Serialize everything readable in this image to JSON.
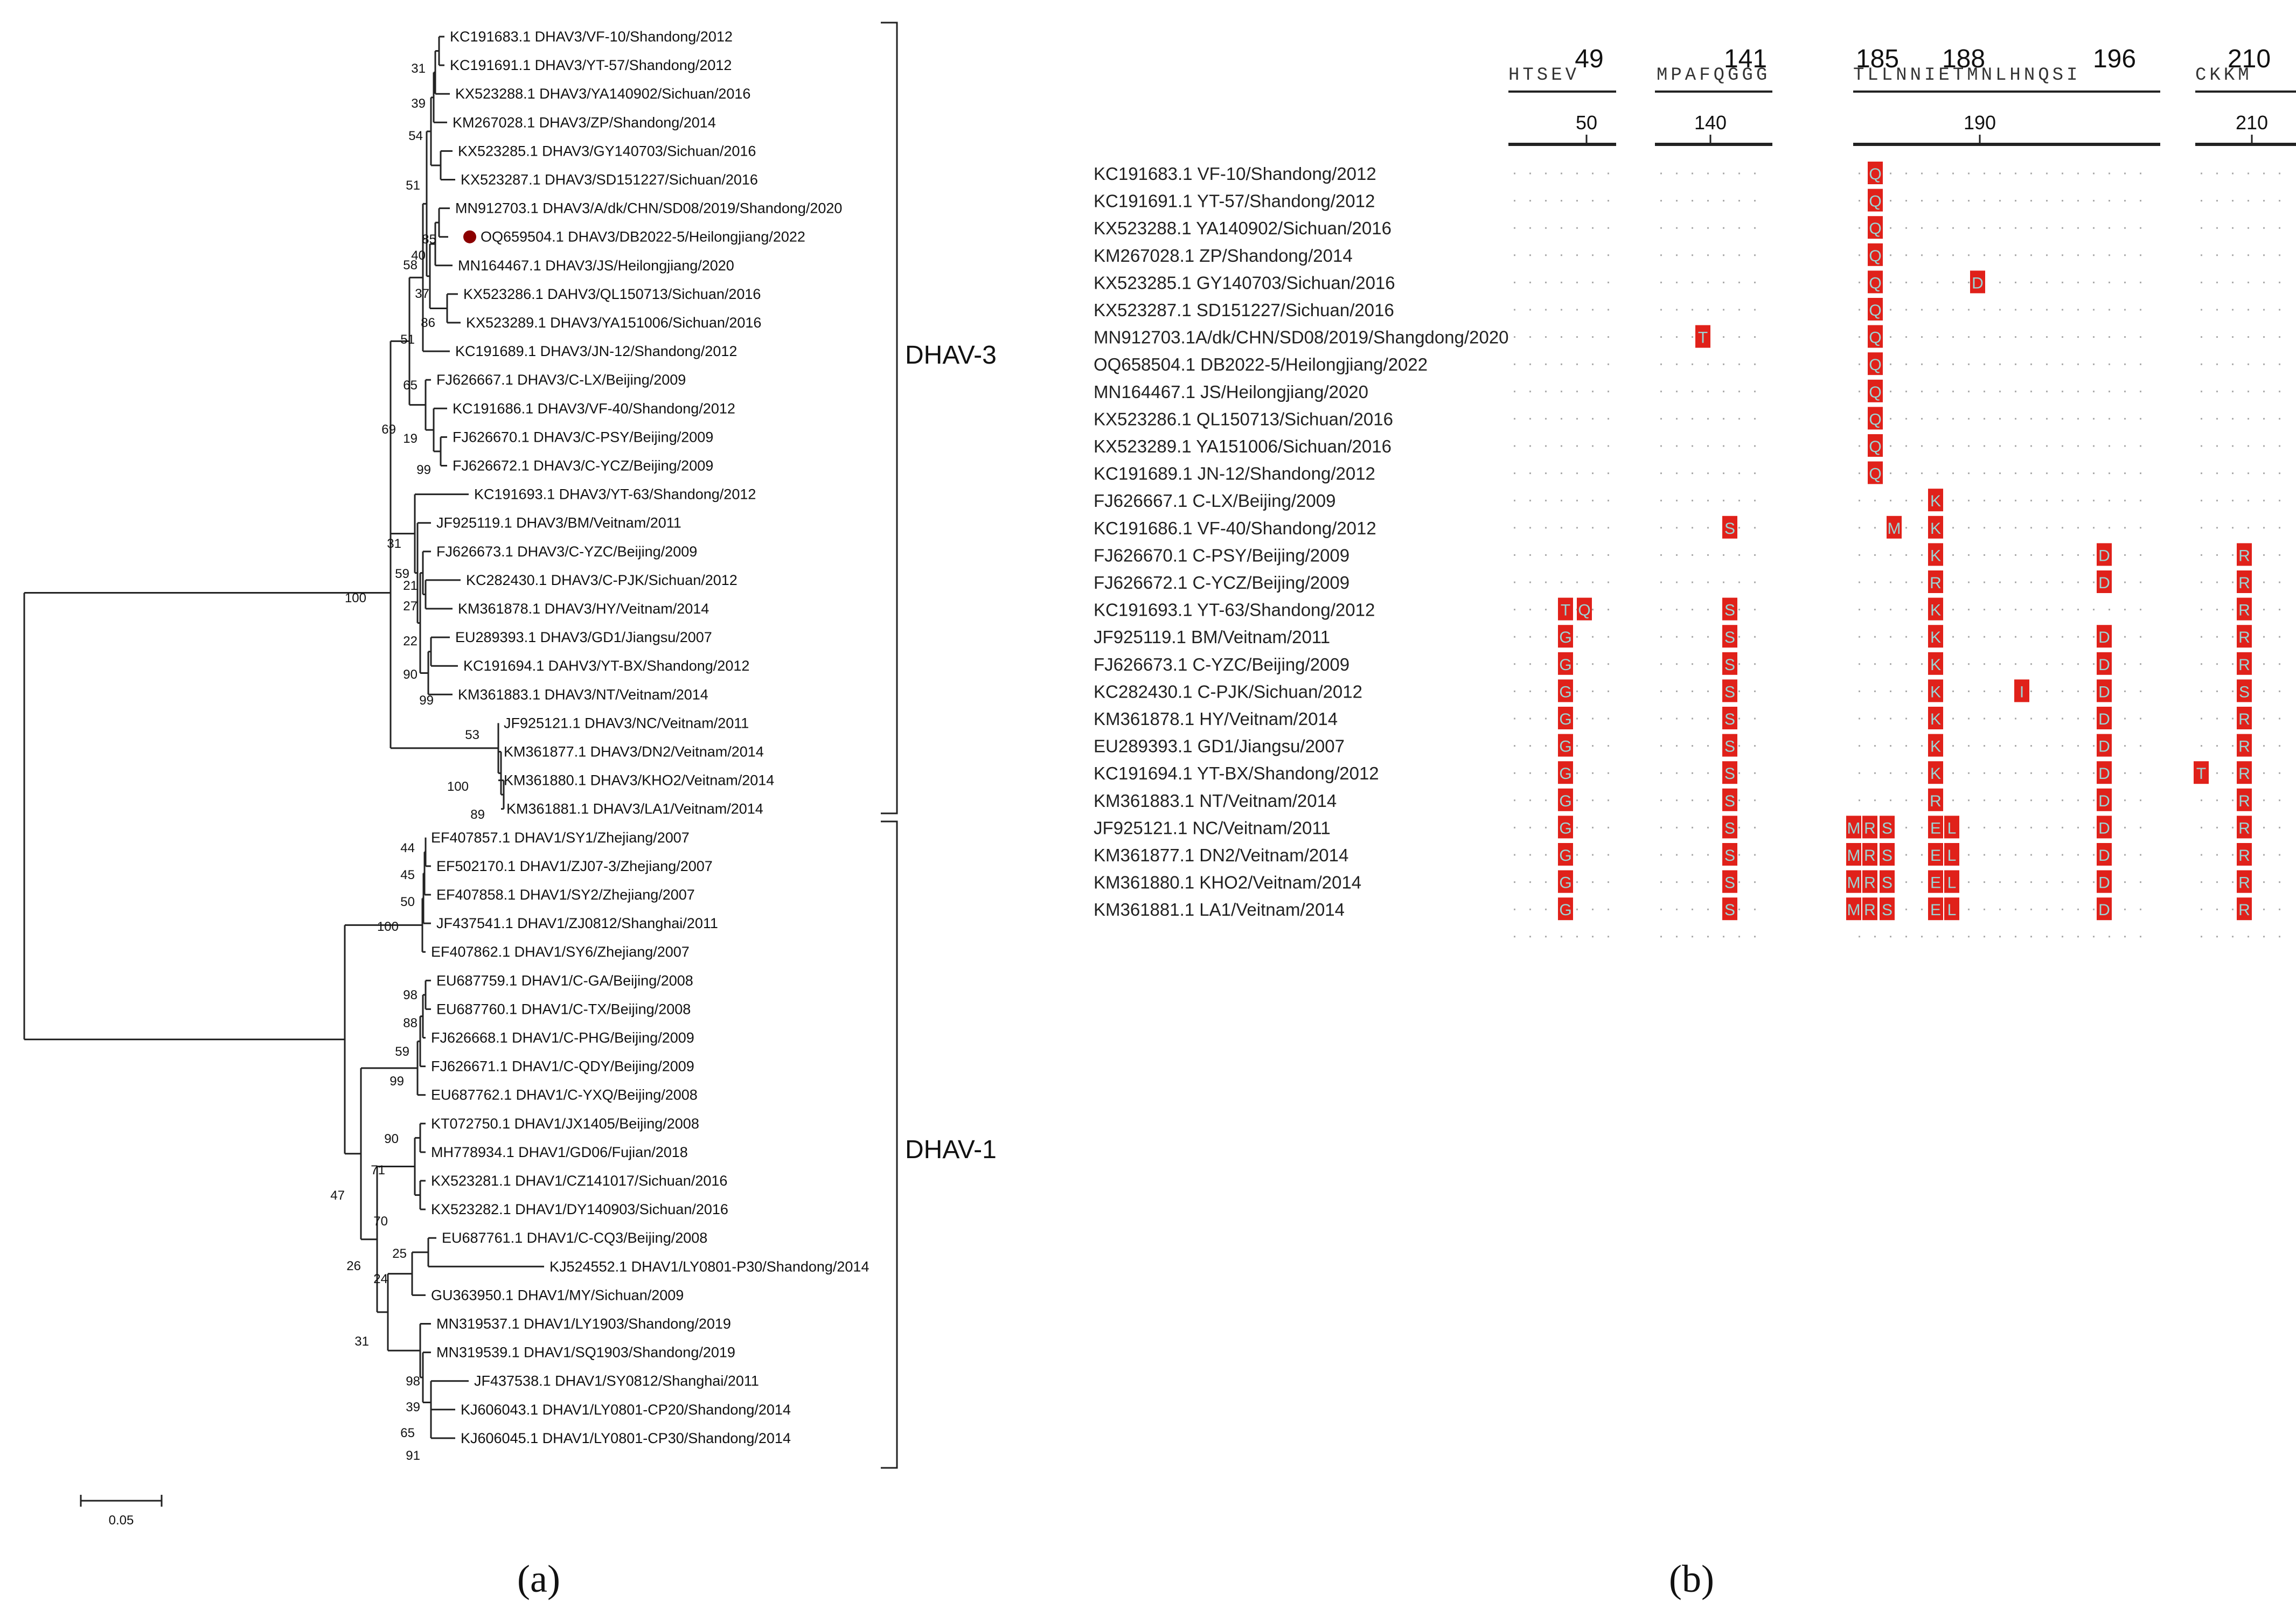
{
  "tree": {
    "scale_label": "0.05",
    "clades": [
      {
        "name": "DHAV-3"
      },
      {
        "name": "DHAV-1"
      }
    ],
    "highlight_color": "#8b0000",
    "tips": [
      "KC191683.1 DHAV3/VF-10/Shandong/2012",
      "KC191691.1 DHAV3/YT-57/Shandong/2012",
      "KX523288.1 DHAV3/YA140902/Sichuan/2016",
      "KM267028.1 DHAV3/ZP/Shandong/2014",
      "KX523285.1 DHAV3/GY140703/Sichuan/2016",
      "KX523287.1 DHAV3/SD151227/Sichuan/2016",
      "MN912703.1 DHAV3/A/dk/CHN/SD08/2019/Shandong/2020",
      "OQ659504.1 DHAV3/DB2022-5/Heilongjiang/2022",
      "MN164467.1 DHAV3/JS/Heilongjiang/2020",
      "KX523286.1 DAHV3/QL150713/Sichuan/2016",
      "KX523289.1 DHAV3/YA151006/Sichuan/2016",
      "KC191689.1 DHAV3/JN-12/Shandong/2012",
      "FJ626667.1 DHAV3/C-LX/Beijing/2009",
      "KC191686.1 DHAV3/VF-40/Shandong/2012",
      "FJ626670.1 DHAV3/C-PSY/Beijing/2009",
      "FJ626672.1 DHAV3/C-YCZ/Beijing/2009",
      "KC191693.1 DHAV3/YT-63/Shandong/2012",
      "JF925119.1 DHAV3/BM/Veitnam/2011",
      "FJ626673.1 DHAV3/C-YZC/Beijing/2009",
      "KC282430.1 DHAV3/C-PJK/Sichuan/2012",
      "KM361878.1 DHAV3/HY/Veitnam/2014",
      "EU289393.1 DHAV3/GD1/Jiangsu/2007",
      "KC191694.1 DAHV3/YT-BX/Shandong/2012",
      "KM361883.1 DHAV3/NT/Veitnam/2014",
      "JF925121.1 DHAV3/NC/Veitnam/2011",
      "KM361877.1 DHAV3/DN2/Veitnam/2014",
      "KM361880.1 DHAV3/KHO2/Veitnam/2014",
      "KM361881.1 DHAV3/LA1/Veitnam/2014",
      "EF407857.1 DHAV1/SY1/Zhejiang/2007",
      "EF502170.1 DHAV1/ZJ07-3/Zhejiang/2007",
      "EF407858.1 DHAV1/SY2/Zhejiang/2007",
      "JF437541.1 DHAV1/ZJ0812/Shanghai/2011",
      "EF407862.1 DHAV1/SY6/Zhejiang/2007",
      "EU687759.1 DHAV1/C-GA/Beijing/2008",
      "EU687760.1 DHAV1/C-TX/Beijing/2008",
      "FJ626668.1 DHAV1/C-PHG/Beijing/2009",
      "FJ626671.1 DHAV1/C-QDY/Beijing/2009",
      "EU687762.1 DHAV1/C-YXQ/Beijing/2008",
      "KT072750.1 DHAV1/JX1405/Beijing/2008",
      "MH778934.1 DHAV1/GD06/Fujian/2018",
      "KX523281.1 DHAV1/CZ141017/Sichuan/2016",
      "KX523282.1 DHAV1/DY140903/Sichuan/2016",
      "EU687761.1 DHAV1/C-CQ3/Beijing/2008",
      "KJ524552.1 DHAV1/LY0801-P30/Shandong/2014",
      "GU363950.1 DHAV1/MY/Sichuan/2009",
      "MN319537.1 DHAV1/LY1903/Shandong/2019",
      "MN319539.1 DHAV1/SQ1903/Shandong/2019",
      "JF437538.1 DHAV1/SY0812/Shanghai/2011",
      "KJ606043.1 DHAV1/LY0801-CP20/Shandong/2014",
      "KJ606045.1 DHAV1/LY0801-CP30/Shandong/2014"
    ],
    "bootstrap": [
      "31",
      "39",
      "54",
      "51",
      "85",
      "40",
      "58",
      "37",
      "86",
      "51",
      "65",
      "19",
      "99",
      "69",
      "100",
      "31",
      "59",
      "21",
      "27",
      "22",
      "90",
      "99",
      "53",
      "100",
      "89",
      "44",
      "45",
      "50",
      "100",
      "98",
      "88",
      "59",
      "99",
      "90",
      "71",
      "70",
      "47",
      "25",
      "24",
      "26",
      "31",
      "98",
      "39",
      "65",
      "91"
    ]
  },
  "alignment": {
    "highlight_color": "#e0211a",
    "position_labels": [
      "49",
      "141",
      "185",
      "188",
      "196",
      "210"
    ],
    "ruler_labels": [
      "50",
      "140",
      "190",
      "210"
    ],
    "consensus": [
      "HTSEV",
      "MPAFQGGG",
      "TLLNNIETMNLHNQSI",
      "CKKM"
    ],
    "sequences": [
      "KC191683.1 VF-10/Shandong/2012",
      "KC191691.1 YT-57/Shandong/2012",
      "KX523288.1 YA140902/Sichuan/2016",
      "KM267028.1 ZP/Shandong/2014",
      "KX523285.1 GY140703/Sichuan/2016",
      "KX523287.1 SD151227/Sichuan/2016",
      "MN912703.1A/dk/CHN/SD08/2019/Shangdong/2020",
      "OQ658504.1 DB2022-5/Heilongjiang/2022",
      "MN164467.1 JS/Heilongjiang/2020",
      "KX523286.1 QL150713/Sichuan/2016",
      "KX523289.1 YA151006/Sichuan/2016",
      "KC191689.1 JN-12/Shandong/2012",
      "FJ626667.1 C-LX/Beijing/2009",
      "KC191686.1 VF-40/Shandong/2012",
      "FJ626670.1 C-PSY/Beijing/2009",
      "FJ626672.1 C-YCZ/Beijing/2009",
      "KC191693.1 YT-63/Shandong/2012",
      "JF925119.1 BM/Veitnam/2011",
      "FJ626673.1 C-YZC/Beijing/2009",
      "KC282430.1 C-PJK/Sichuan/2012",
      "KM361878.1 HY/Veitnam/2014",
      "EU289393.1 GD1/Jiangsu/2007",
      "KC191694.1 YT-BX/Shandong/2012",
      "KM361883.1 NT/Veitnam/2014",
      "JF925121.1 NC/Veitnam/2011",
      "KM361877.1 DN2/Veitnam/2014",
      "KM361880.1 KHO2/Veitnam/2014",
      "KM361881.1 LA1/Veitnam/2014"
    ],
    "mutations": [
      [
        "Q"
      ],
      [
        "Q"
      ],
      [
        "Q"
      ],
      [
        "Q"
      ],
      [
        "Q",
        "D"
      ],
      [
        "Q"
      ],
      [
        "T",
        "Q"
      ],
      [
        "Q"
      ],
      [
        "Q"
      ],
      [
        "Q"
      ],
      [
        "Q"
      ],
      [
        "Q"
      ],
      [
        "K"
      ],
      [
        "S",
        "M",
        "K"
      ],
      [
        "K",
        "D",
        "R"
      ],
      [
        "R",
        "D",
        "R"
      ],
      [
        "T",
        "Q",
        "S",
        "K",
        "R"
      ],
      [
        "G",
        "S",
        "K",
        "D",
        "R"
      ],
      [
        "G",
        "S",
        "K",
        "D",
        "R"
      ],
      [
        "G",
        "S",
        "K",
        "I",
        "D",
        "S"
      ],
      [
        "G",
        "S",
        "K",
        "D",
        "R"
      ],
      [
        "G",
        "S",
        "K",
        "D",
        "R"
      ],
      [
        "G",
        "S",
        "K",
        "D",
        "T",
        "R"
      ],
      [
        "G",
        "S",
        "R",
        "D",
        "R"
      ],
      [
        "G",
        "S",
        "M",
        "R",
        "S",
        "E",
        "L",
        "D",
        "R"
      ],
      [
        "G",
        "S",
        "M",
        "R",
        "S",
        "E",
        "L",
        "D",
        "R"
      ],
      [
        "G",
        "S",
        "M",
        "R",
        "S",
        "E",
        "L",
        "D",
        "R"
      ],
      [
        "G",
        "S",
        "M",
        "R",
        "S",
        "E",
        "L",
        "D",
        "R"
      ]
    ]
  },
  "panels": [
    "(a)",
    "(b)"
  ]
}
